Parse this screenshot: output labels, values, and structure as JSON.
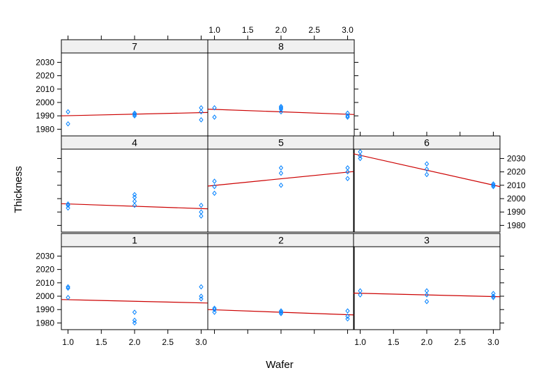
{
  "chart_data": {
    "type": "scatter",
    "layout": {
      "columns": 3,
      "rows": 3
    },
    "xlabel": "Wafer",
    "ylabel": "Thickness",
    "xlim": [
      0.9,
      3.1
    ],
    "ylim": [
      1975,
      2037
    ],
    "x_ticks": [
      "1.0",
      "1.5",
      "2.0",
      "2.5",
      "3.0"
    ],
    "y_ticks": [
      "1980",
      "1990",
      "2000",
      "2010",
      "2020",
      "2030"
    ],
    "point_color": "#0080ff",
    "line_color": "#cc0000",
    "panels": [
      {
        "label": "1",
        "points": [
          [
            1,
            2007
          ],
          [
            1,
            2006
          ],
          [
            1,
            1999
          ],
          [
            2,
            1988
          ],
          [
            2,
            1982
          ],
          [
            2,
            1980
          ],
          [
            3,
            2007
          ],
          [
            3,
            2000
          ],
          [
            3,
            1998
          ]
        ],
        "fit": [
          [
            0.9,
            1997.5
          ],
          [
            3.1,
            1994.9
          ]
        ]
      },
      {
        "label": "2",
        "points": [
          [
            1,
            1991
          ],
          [
            1,
            1990
          ],
          [
            1,
            1988
          ],
          [
            2,
            1989
          ],
          [
            2,
            1988
          ],
          [
            2,
            1987
          ],
          [
            3,
            1989
          ],
          [
            3,
            1985
          ],
          [
            3,
            1983
          ]
        ],
        "fit": [
          [
            0.9,
            1990
          ],
          [
            3.1,
            1986
          ]
        ]
      },
      {
        "label": "3",
        "points": [
          [
            1,
            2004
          ],
          [
            1,
            2001
          ],
          [
            2,
            2004
          ],
          [
            2,
            2001
          ],
          [
            2,
            1996
          ],
          [
            3,
            2002
          ],
          [
            3,
            2000
          ],
          [
            3,
            1999
          ]
        ],
        "fit": [
          [
            0.9,
            2002.3
          ],
          [
            3.1,
            1999.6
          ]
        ]
      },
      {
        "label": "4",
        "points": [
          [
            1,
            1996
          ],
          [
            1,
            1995
          ],
          [
            1,
            1993
          ],
          [
            2,
            2003
          ],
          [
            2,
            2001
          ],
          [
            2,
            1998
          ],
          [
            2,
            1995
          ],
          [
            3,
            1995
          ],
          [
            3,
            1990
          ],
          [
            3,
            1987
          ]
        ],
        "fit": [
          [
            0.9,
            1996.2
          ],
          [
            3.1,
            1992.4
          ]
        ]
      },
      {
        "label": "5",
        "points": [
          [
            1,
            2013
          ],
          [
            1,
            2009
          ],
          [
            1,
            2004
          ],
          [
            2,
            2023
          ],
          [
            2,
            2019
          ],
          [
            2,
            2010
          ],
          [
            3,
            2023
          ],
          [
            3,
            2020
          ],
          [
            3,
            2015
          ]
        ],
        "fit": [
          [
            0.9,
            2009.4
          ],
          [
            3.1,
            2020.3
          ]
        ]
      },
      {
        "label": "6",
        "points": [
          [
            1,
            2035
          ],
          [
            1,
            2032
          ],
          [
            1,
            2030
          ],
          [
            2,
            2026
          ],
          [
            2,
            2022
          ],
          [
            2,
            2018
          ],
          [
            3,
            2011
          ],
          [
            3,
            2010
          ],
          [
            3,
            2009
          ]
        ],
        "fit": [
          [
            0.9,
            2033.5
          ],
          [
            3.1,
            2009
          ]
        ]
      },
      {
        "label": "7",
        "points": [
          [
            1,
            1993
          ],
          [
            1,
            1984
          ],
          [
            2,
            1992
          ],
          [
            2,
            1991
          ],
          [
            2,
            1990
          ],
          [
            3,
            1996
          ],
          [
            3,
            1993
          ],
          [
            3,
            1987
          ]
        ],
        "fit": [
          [
            0.9,
            1990
          ],
          [
            3.1,
            1992.5
          ]
        ]
      },
      {
        "label": "8",
        "points": [
          [
            1,
            1996
          ],
          [
            1,
            1989
          ],
          [
            2,
            1997
          ],
          [
            2,
            1996
          ],
          [
            2,
            1995
          ],
          [
            2,
            1993
          ],
          [
            3,
            1992
          ],
          [
            3,
            1990
          ],
          [
            3,
            1989
          ]
        ],
        "fit": [
          [
            0.9,
            1995
          ],
          [
            3.1,
            1991
          ]
        ]
      }
    ]
  }
}
